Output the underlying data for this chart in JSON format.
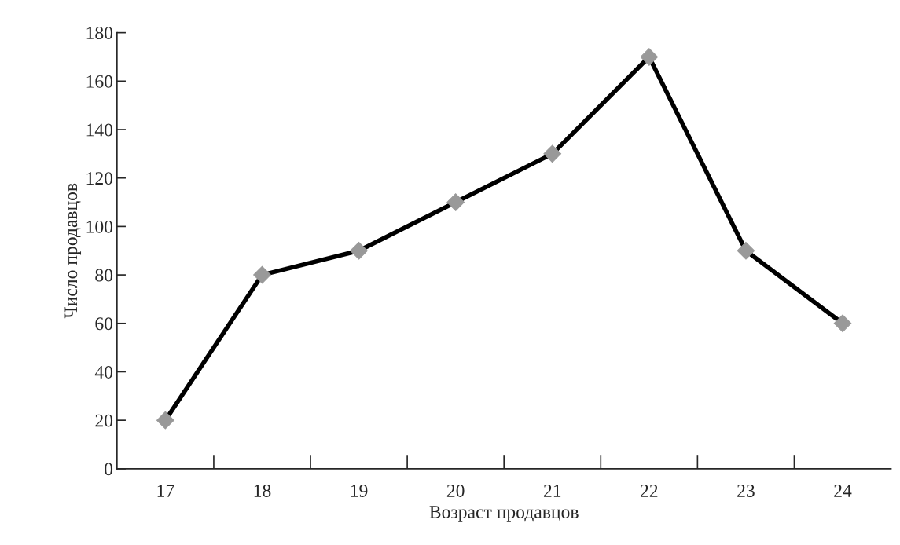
{
  "chart_data": {
    "type": "line",
    "xlabel": "Возраст продавцов",
    "ylabel": "Число продавцов",
    "categories": [
      "17",
      "18",
      "19",
      "20",
      "21",
      "22",
      "23",
      "24"
    ],
    "series": [
      {
        "color": "#000000",
        "values": [
          20,
          80,
          90,
          110,
          130,
          170,
          90,
          60
        ]
      }
    ],
    "ylim": [
      0,
      180
    ],
    "yticks": [
      0,
      20,
      40,
      60,
      80,
      100,
      120,
      140,
      160,
      180
    ],
    "grid": false,
    "legend": false,
    "marker": "diamond",
    "line_style": "solid"
  }
}
